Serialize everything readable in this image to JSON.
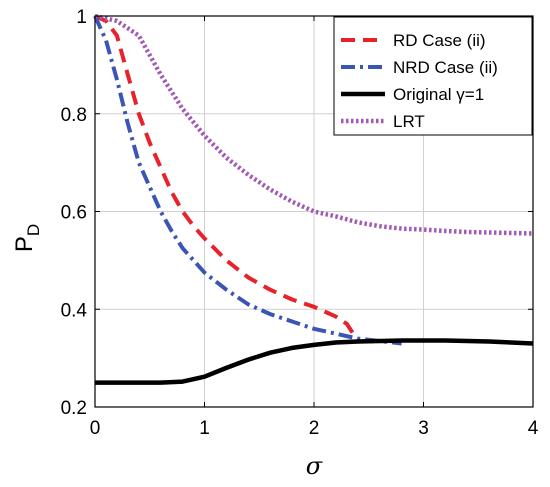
{
  "chart_data": {
    "type": "line",
    "xlabel": "σ",
    "ylabel_main": "P",
    "ylabel_sub": "D",
    "xlim": [
      0,
      4
    ],
    "ylim": [
      0.2,
      1
    ],
    "xticks": [
      0,
      1,
      2,
      3,
      4
    ],
    "xtick_labels": [
      "0",
      "1",
      "2",
      "3",
      "4"
    ],
    "yticks": [
      0.2,
      0.4,
      0.6,
      0.8,
      1
    ],
    "ytick_labels": [
      "0.2",
      "0.4",
      "0.6",
      "0.8",
      "1"
    ],
    "grid": true,
    "legend_position": "top-right",
    "series": [
      {
        "name": "RD Case (ii)",
        "color": "#e8212b",
        "dash": "dashed",
        "x": [
          0,
          0.1,
          0.2,
          0.3,
          0.4,
          0.5,
          0.6,
          0.7,
          0.8,
          0.9,
          1.0,
          1.2,
          1.4,
          1.6,
          1.8,
          2.0,
          2.2,
          2.3,
          2.4
        ],
        "y": [
          1.0,
          0.99,
          0.96,
          0.88,
          0.8,
          0.74,
          0.69,
          0.64,
          0.6,
          0.57,
          0.545,
          0.5,
          0.465,
          0.44,
          0.42,
          0.405,
          0.385,
          0.37,
          0.335
        ]
      },
      {
        "name": "NRD Case (ii)",
        "color": "#3a55b4",
        "dash": "dashdot",
        "x": [
          0,
          0.1,
          0.2,
          0.3,
          0.4,
          0.5,
          0.6,
          0.7,
          0.8,
          0.9,
          1.0,
          1.2,
          1.4,
          1.6,
          1.8,
          2.0,
          2.2,
          2.4,
          2.6,
          2.8
        ],
        "y": [
          1.0,
          0.95,
          0.87,
          0.78,
          0.7,
          0.65,
          0.6,
          0.56,
          0.525,
          0.5,
          0.475,
          0.44,
          0.41,
          0.39,
          0.375,
          0.36,
          0.35,
          0.34,
          0.335,
          0.33
        ]
      },
      {
        "name": "Original γ=1",
        "color": "#000000",
        "dash": "solid",
        "x": [
          0,
          0.2,
          0.4,
          0.6,
          0.8,
          1.0,
          1.2,
          1.4,
          1.6,
          1.8,
          2.0,
          2.2,
          2.4,
          2.6,
          2.8,
          3.0,
          3.2,
          3.4,
          3.6,
          3.8,
          4.0
        ],
        "y": [
          0.25,
          0.25,
          0.25,
          0.25,
          0.252,
          0.262,
          0.28,
          0.297,
          0.311,
          0.321,
          0.327,
          0.332,
          0.334,
          0.335,
          0.336,
          0.336,
          0.336,
          0.335,
          0.334,
          0.332,
          0.33
        ]
      },
      {
        "name": "LRT",
        "color": "#a259b5",
        "dash": "dotted",
        "x": [
          0,
          0.2,
          0.4,
          0.6,
          0.8,
          1.0,
          1.2,
          1.4,
          1.6,
          1.8,
          2.0,
          2.2,
          2.4,
          2.6,
          2.8,
          3.0,
          3.2,
          3.4,
          3.6,
          3.8,
          4.0
        ],
        "y": [
          1.0,
          0.99,
          0.96,
          0.88,
          0.81,
          0.755,
          0.71,
          0.675,
          0.645,
          0.62,
          0.6,
          0.59,
          0.578,
          0.57,
          0.565,
          0.563,
          0.56,
          0.558,
          0.557,
          0.556,
          0.555
        ]
      }
    ]
  }
}
